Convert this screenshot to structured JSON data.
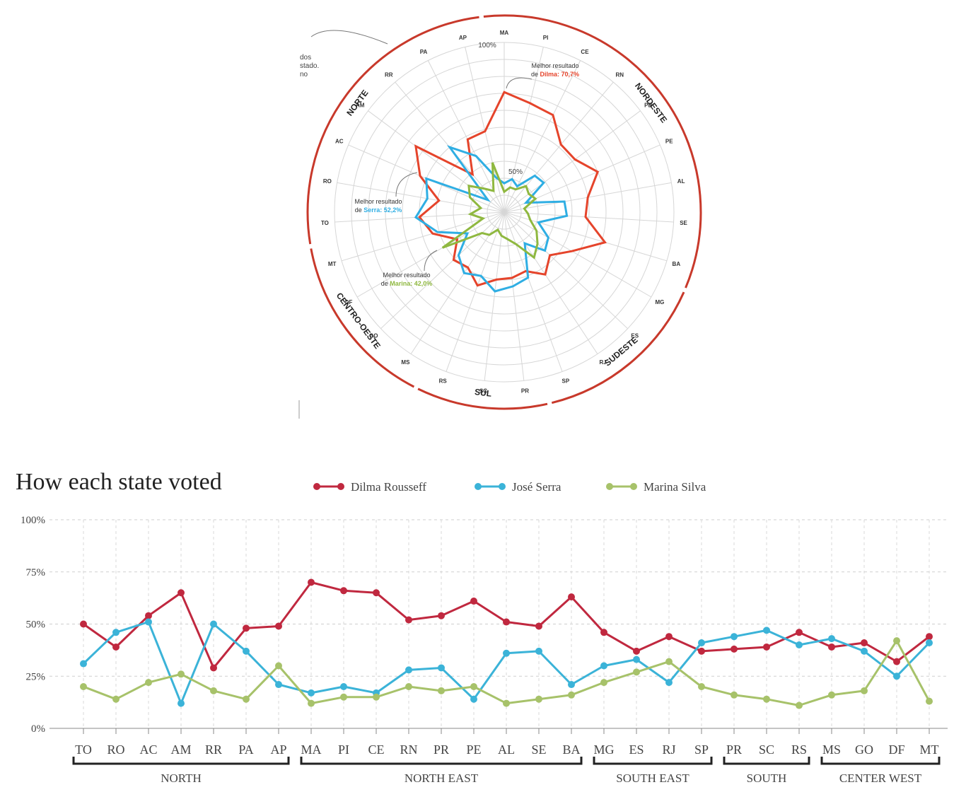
{
  "colors": {
    "dilma": "#e5442b",
    "serra": "#2faee3",
    "marina": "#8fb840",
    "dilma_line": "#c0283f",
    "serra_line": "#3bb3d8",
    "marina_line": "#a7c26a",
    "region_arc": "#c8392b",
    "grid": "#d6d6d6"
  },
  "chart_data": [
    {
      "type": "radar",
      "title": "",
      "axes": [
        "MA",
        "PI",
        "CE",
        "RN",
        "PB",
        "PE",
        "AL",
        "SE",
        "BA",
        "MG",
        "ES",
        "RJ",
        "SP",
        "PR",
        "SC",
        "RS",
        "MS",
        "GO",
        "DF",
        "MT",
        "TO",
        "RO",
        "AC",
        "AM",
        "RR",
        "PA",
        "AP"
      ],
      "range": [
        0,
        100
      ],
      "ring_labels": [
        "50%",
        "100%"
      ],
      "series": [
        {
          "name": "Dilma",
          "values": [
            70.7,
            66,
            64,
            52,
            52,
            60,
            50,
            48,
            62,
            46,
            37,
            44,
            37,
            39,
            40,
            46,
            39,
            41,
            32,
            44,
            50,
            39,
            54,
            65,
            29,
            48,
            49
          ]
        },
        {
          "name": "Serra",
          "values": [
            17,
            20,
            17,
            28,
            29,
            14,
            36,
            37,
            21,
            30,
            33,
            22,
            41,
            44,
            47,
            40,
            43,
            37,
            25,
            41,
            52.2,
            46,
            50,
            12,
            50,
            37,
            21
          ]
        },
        {
          "name": "Marina",
          "values": [
            12,
            15,
            15,
            20,
            18,
            20,
            12,
            14,
            16,
            22,
            27,
            32,
            20,
            16,
            14,
            11,
            16,
            18,
            42,
            13,
            20,
            14,
            22,
            26,
            18,
            14,
            30
          ]
        }
      ],
      "regions": [
        {
          "label": "NORDESTE",
          "states": [
            "MA",
            "PI",
            "CE",
            "RN",
            "PB",
            "PE",
            "AL",
            "SE",
            "BA"
          ]
        },
        {
          "label": "SUDESTE",
          "states": [
            "MG",
            "ES",
            "RJ",
            "SP"
          ]
        },
        {
          "label": "SUL",
          "states": [
            "PR",
            "SC",
            "RS"
          ]
        },
        {
          "label": "CENTRO-OESTE",
          "states": [
            "MS",
            "GO",
            "DF",
            "MT"
          ]
        },
        {
          "label": "NORTE",
          "states": [
            "TO",
            "RO",
            "AC",
            "AM",
            "RR",
            "PA",
            "AP"
          ]
        }
      ],
      "annotations": [
        {
          "id": "dilma",
          "line1": "Melhor resultado",
          "prefix": "de ",
          "name": "Dilma",
          "value": "70,7%"
        },
        {
          "id": "serra",
          "line1": "Melhor resultado",
          "prefix": "de ",
          "name": "Serra",
          "value": "52,2%"
        },
        {
          "id": "marina",
          "line1": "Melhor resultado",
          "prefix": "de ",
          "name": "Marina",
          "value": "42,0%"
        }
      ],
      "cut_note": [
        "dos",
        "stado.",
        "no"
      ]
    },
    {
      "type": "line",
      "title": "How each state voted",
      "categories": [
        "TO",
        "RO",
        "AC",
        "AM",
        "RR",
        "PA",
        "AP",
        "MA",
        "PI",
        "CE",
        "RN",
        "PR",
        "PE",
        "AL",
        "SE",
        "BA",
        "MG",
        "ES",
        "RJ",
        "SP",
        "PR",
        "SC",
        "RS",
        "MS",
        "GO",
        "DF",
        "MT"
      ],
      "ylim": [
        0,
        100
      ],
      "yticks": [
        "0%",
        "25%",
        "50%",
        "75%",
        "100%"
      ],
      "series": [
        {
          "name": "Dilma Rousseff",
          "values": [
            50,
            39,
            54,
            65,
            29,
            48,
            49,
            70,
            66,
            65,
            52,
            54,
            61,
            51,
            49,
            63,
            46,
            37,
            44,
            37,
            38,
            39,
            46,
            39,
            41,
            32,
            44
          ]
        },
        {
          "name": "José Serra",
          "values": [
            31,
            46,
            51,
            12,
            50,
            37,
            21,
            17,
            20,
            17,
            28,
            29,
            14,
            36,
            37,
            21,
            30,
            33,
            22,
            41,
            44,
            47,
            40,
            43,
            37,
            25,
            41
          ]
        },
        {
          "name": "Marina Silva",
          "values": [
            20,
            14,
            22,
            26,
            18,
            14,
            30,
            12,
            15,
            15,
            20,
            18,
            20,
            12,
            14,
            16,
            22,
            27,
            32,
            20,
            16,
            14,
            11,
            16,
            18,
            42,
            13
          ]
        }
      ],
      "groups": [
        {
          "label": "NORTH",
          "from": 0,
          "to": 6
        },
        {
          "label": "NORTH EAST",
          "from": 7,
          "to": 15
        },
        {
          "label": "SOUTH EAST",
          "from": 16,
          "to": 19
        },
        {
          "label": "SOUTH",
          "from": 20,
          "to": 22
        },
        {
          "label": "CENTER WEST",
          "from": 23,
          "to": 26
        }
      ]
    }
  ]
}
